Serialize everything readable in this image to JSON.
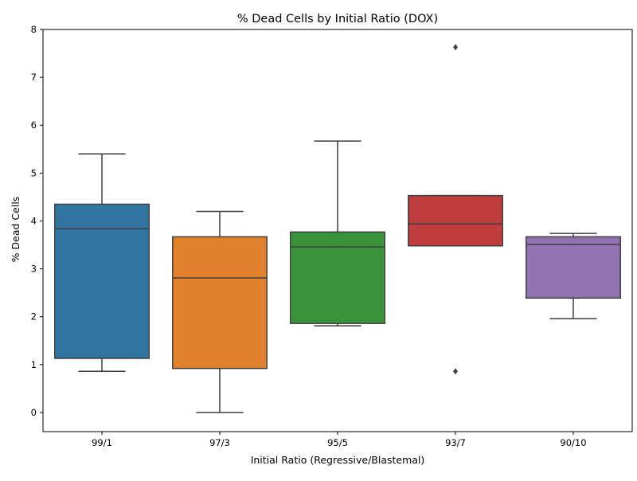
{
  "chart_data": {
    "type": "box",
    "title": "% Dead Cells by Initial Ratio (DOX)",
    "xlabel": "Initial Ratio (Regressive/Blastemal)",
    "ylabel": "% Dead Cells",
    "ylim": [
      -0.4,
      8
    ],
    "yticks": [
      0,
      1,
      2,
      3,
      4,
      5,
      6,
      7,
      8
    ],
    "grid": false,
    "legend": "none",
    "categories": [
      "99/1",
      "97/3",
      "95/5",
      "93/7",
      "90/10"
    ],
    "boxes": [
      {
        "category": "99/1",
        "whisker_low": 0.86,
        "q1": 1.13,
        "median": 3.84,
        "q3": 4.35,
        "whisker_high": 5.4,
        "outliers": [],
        "color": "#3274a1"
      },
      {
        "category": "97/3",
        "whisker_low": 0.0,
        "q1": 0.92,
        "median": 2.81,
        "q3": 3.67,
        "whisker_high": 4.2,
        "outliers": [],
        "color": "#e1812c"
      },
      {
        "category": "95/5",
        "whisker_low": 1.81,
        "q1": 1.86,
        "median": 3.46,
        "q3": 3.77,
        "whisker_high": 5.67,
        "outliers": [],
        "color": "#3a923a"
      },
      {
        "category": "93/7",
        "whisker_low": 3.48,
        "q1": 3.48,
        "median": 3.94,
        "q3": 4.53,
        "whisker_high": 4.53,
        "outliers": [
          0.86,
          7.63
        ],
        "color": "#c03d3e"
      },
      {
        "category": "90/10",
        "whisker_low": 1.96,
        "q1": 2.39,
        "median": 3.51,
        "q3": 3.67,
        "whisker_high": 3.74,
        "outliers": [],
        "color": "#9372b2"
      }
    ]
  }
}
